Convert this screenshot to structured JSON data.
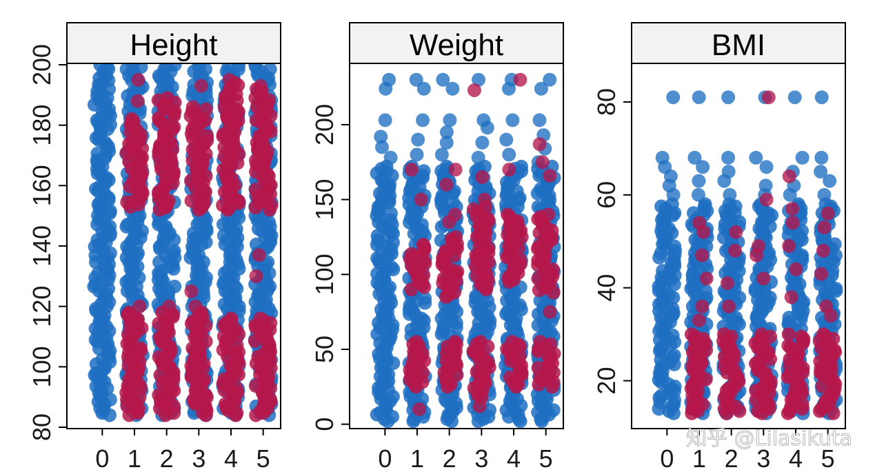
{
  "watermark": "知乎 @Lilasikuta",
  "colors": {
    "group_a": "#1f6fc2",
    "group_b": "#b5174b",
    "strip_bg": "#f2f2f2",
    "frame": "#000000"
  },
  "chart_data": [
    {
      "type": "scatter",
      "title": "Height",
      "x_categories": [
        "0",
        "1",
        "2",
        "3",
        "4",
        "5"
      ],
      "ylim": [
        80,
        200
      ],
      "yticks": [
        80,
        100,
        120,
        140,
        160,
        180,
        200
      ],
      "grid": false,
      "series": [
        {
          "color": "#1f6fc2",
          "ranges": [
            [
              0,
              84,
              200
            ],
            [
              1,
              84,
              200
            ],
            [
              2,
              84,
              200
            ],
            [
              3,
              84,
              200
            ],
            [
              4,
              84,
              200
            ],
            [
              5,
              84,
              200
            ]
          ],
          "points": []
        },
        {
          "color": "#b5174b",
          "ranges": [
            [
              1,
              84,
              118
            ],
            [
              1,
              153,
              182
            ],
            [
              2,
              84,
              118
            ],
            [
              2,
              152,
              189
            ],
            [
              3,
              84,
              118
            ],
            [
              3,
              152,
              186
            ],
            [
              4,
              84,
              116
            ],
            [
              4,
              152,
              194
            ],
            [
              5,
              84,
              116
            ],
            [
              5,
              152,
              192
            ]
          ],
          "points": [
            [
              1,
              195
            ],
            [
              1,
              188
            ],
            [
              1,
              120
            ],
            [
              2,
              120
            ],
            [
              3,
              193
            ],
            [
              3,
              125
            ],
            [
              3,
              120
            ],
            [
              4,
              195
            ],
            [
              5,
              137
            ],
            [
              5,
              130
            ],
            [
              5,
              193
            ]
          ]
        }
      ]
    },
    {
      "type": "scatter",
      "title": "Weight",
      "x_categories": [
        "0",
        "1",
        "2",
        "3",
        "4",
        "5"
      ],
      "ylim": [
        -2,
        240
      ],
      "yticks": [
        0,
        50,
        100,
        150,
        200
      ],
      "grid": false,
      "series": [
        {
          "color": "#1f6fc2",
          "ranges": [
            [
              0,
              2,
              172
            ],
            [
              1,
              2,
              172
            ],
            [
              2,
              2,
              172
            ],
            [
              3,
              2,
              172
            ],
            [
              4,
              2,
              172
            ],
            [
              5,
              2,
              172
            ]
          ],
          "points": [
            [
              0,
              178
            ],
            [
              0,
              185
            ],
            [
              0,
              192
            ],
            [
              0,
              203
            ],
            [
              0,
              224
            ],
            [
              0,
              230
            ],
            [
              1,
              180
            ],
            [
              1,
              190
            ],
            [
              1,
              203
            ],
            [
              1,
              224
            ],
            [
              1,
              230
            ],
            [
              2,
              180
            ],
            [
              2,
              188
            ],
            [
              2,
              195
            ],
            [
              2,
              203
            ],
            [
              2,
              224
            ],
            [
              2,
              230
            ],
            [
              3,
              178
            ],
            [
              3,
              188
            ],
            [
              3,
              198
            ],
            [
              3,
              203
            ],
            [
              3,
              230
            ],
            [
              4,
              180
            ],
            [
              4,
              190
            ],
            [
              4,
              203
            ],
            [
              4,
              224
            ],
            [
              4,
              230
            ],
            [
              5,
              175
            ],
            [
              5,
              184
            ],
            [
              5,
              193
            ],
            [
              5,
              203
            ],
            [
              5,
              224
            ],
            [
              5,
              230
            ]
          ]
        },
        {
          "color": "#b5174b",
          "ranges": [
            [
              1,
              25,
              55
            ],
            [
              1,
              90,
              120
            ],
            [
              2,
              25,
              55
            ],
            [
              2,
              85,
              125
            ],
            [
              3,
              18,
              55
            ],
            [
              3,
              90,
              145
            ],
            [
              4,
              25,
              55
            ],
            [
              4,
              95,
              140
            ],
            [
              5,
              25,
              55
            ],
            [
              5,
              88,
              140
            ]
          ],
          "points": [
            [
              1,
              10
            ],
            [
              1,
              150
            ],
            [
              1,
              170
            ],
            [
              2,
              135
            ],
            [
              2,
              140
            ],
            [
              2,
              160
            ],
            [
              2,
              170
            ],
            [
              3,
              12
            ],
            [
              3,
              150
            ],
            [
              3,
              165
            ],
            [
              3,
              223
            ],
            [
              4,
              110
            ],
            [
              4,
              170
            ],
            [
              4,
              230
            ],
            [
              5,
              175
            ],
            [
              5,
              187
            ],
            [
              5,
              166
            ],
            [
              5,
              75
            ]
          ]
        }
      ]
    },
    {
      "type": "scatter",
      "title": "BMI",
      "x_categories": [
        "0",
        "1",
        "2",
        "3",
        "4",
        "5"
      ],
      "ylim": [
        10,
        88
      ],
      "yticks": [
        20,
        40,
        60,
        80
      ],
      "grid": false,
      "series": [
        {
          "color": "#1f6fc2",
          "ranges": [
            [
              0,
              13,
              58
            ],
            [
              1,
              13,
              58
            ],
            [
              2,
              13,
              58
            ],
            [
              3,
              13,
              58
            ],
            [
              4,
              13,
              58
            ],
            [
              5,
              13,
              58
            ]
          ],
          "points": [
            [
              0,
              60
            ],
            [
              0,
              62
            ],
            [
              0,
              64
            ],
            [
              0,
              66
            ],
            [
              0,
              68
            ],
            [
              0,
              81
            ],
            [
              1,
              60
            ],
            [
              1,
              63
            ],
            [
              1,
              66
            ],
            [
              1,
              68
            ],
            [
              1,
              81
            ],
            [
              2,
              60
            ],
            [
              2,
              63
            ],
            [
              2,
              65
            ],
            [
              2,
              68
            ],
            [
              2,
              81
            ],
            [
              3,
              60
            ],
            [
              3,
              62
            ],
            [
              3,
              66
            ],
            [
              3,
              68
            ],
            [
              3,
              81
            ],
            [
              4,
              60
            ],
            [
              4,
              62
            ],
            [
              4,
              65
            ],
            [
              4,
              68
            ],
            [
              4,
              81
            ],
            [
              5,
              60
            ],
            [
              5,
              63
            ],
            [
              5,
              65
            ],
            [
              5,
              68
            ],
            [
              5,
              81
            ]
          ]
        },
        {
          "color": "#b5174b",
          "ranges": [
            [
              1,
              13,
              30
            ],
            [
              2,
              13,
              30
            ],
            [
              3,
              13,
              30
            ],
            [
              4,
              13,
              30
            ],
            [
              5,
              13,
              30
            ]
          ],
          "points": [
            [
              1,
              54
            ],
            [
              1,
              52
            ],
            [
              1,
              47
            ],
            [
              1,
              42
            ],
            [
              1,
              36
            ],
            [
              1,
              33
            ],
            [
              2,
              52
            ],
            [
              2,
              48
            ],
            [
              2,
              41
            ],
            [
              2,
              36
            ],
            [
              3,
              59
            ],
            [
              3,
              49
            ],
            [
              3,
              47
            ],
            [
              3,
              42
            ],
            [
              3,
              81
            ],
            [
              4,
              64
            ],
            [
              4,
              57
            ],
            [
              4,
              54
            ],
            [
              4,
              49
            ],
            [
              4,
              44
            ],
            [
              4,
              38
            ],
            [
              5,
              56
            ],
            [
              5,
              53
            ],
            [
              5,
              48
            ],
            [
              5,
              43
            ],
            [
              5,
              36
            ],
            [
              5,
              34
            ]
          ]
        }
      ]
    }
  ]
}
